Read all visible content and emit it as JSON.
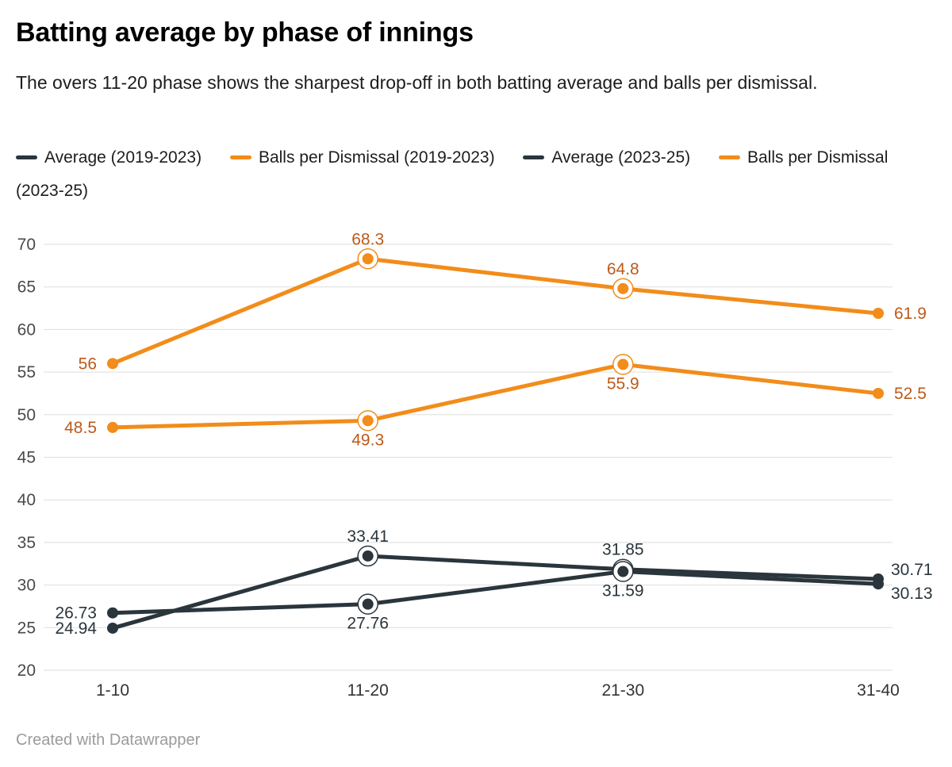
{
  "header": {
    "title": "Batting average by phase of innings",
    "subtitle": "The overs 11-20 phase shows the sharpest drop-off in both batting average and balls per dismissal."
  },
  "legend": {
    "items": [
      {
        "label": "Average (2019-2023)",
        "color": "#2a353c"
      },
      {
        "label": "Balls per Dismissal (2019-2023)",
        "color": "#f28c1a"
      },
      {
        "label": "Average (2023-25)",
        "color": "#2a353c"
      },
      {
        "label": "Balls per Dismissal (2023-25)",
        "color": "#f28c1a"
      }
    ]
  },
  "footer": {
    "credit": "Created with Datawrapper"
  },
  "colors": {
    "grid": "#dedede",
    "tick_label": "#4a4a4a",
    "category_label": "#333333",
    "dark_series": "#2a353c",
    "dark_label": "#2a353c",
    "orange_series": "#f28c1a",
    "orange_label": "#bc5a1b",
    "background": "#ffffff"
  },
  "chart_data": {
    "type": "line",
    "title": "Batting average by phase of innings",
    "categories": [
      "1-10",
      "11-20",
      "21-30",
      "31-40"
    ],
    "xlabel": "",
    "ylabel": "",
    "ylim": [
      20,
      70
    ],
    "y_ticks": [
      20,
      25,
      30,
      35,
      40,
      45,
      50,
      55,
      60,
      65,
      70
    ],
    "grid": "horizontal",
    "legend_position": "top",
    "highlighted_category_indexes": [
      1,
      2
    ],
    "series": [
      {
        "name": "Average (2019-2023)",
        "color": "#2a353c",
        "label_color": "#2a353c",
        "values": [
          24.94,
          33.41,
          31.85,
          30.71
        ],
        "label_positions": [
          "left",
          "above",
          "above",
          "right-up"
        ]
      },
      {
        "name": "Balls per Dismissal (2019-2023)",
        "color": "#f28c1a",
        "label_color": "#bc5a1b",
        "values": [
          56,
          68.3,
          64.8,
          61.9
        ],
        "label_positions": [
          "left",
          "above",
          "above",
          "right"
        ]
      },
      {
        "name": "Average (2023-25)",
        "color": "#2a353c",
        "label_color": "#2a353c",
        "values": [
          26.73,
          27.76,
          31.59,
          30.13
        ],
        "label_positions": [
          "left",
          "below",
          "below",
          "right-down"
        ]
      },
      {
        "name": "Balls per Dismissal (2023-25)",
        "color": "#f28c1a",
        "label_color": "#bc5a1b",
        "values": [
          48.5,
          49.3,
          55.9,
          52.5
        ],
        "label_positions": [
          "left",
          "below",
          "below",
          "right"
        ]
      }
    ]
  }
}
